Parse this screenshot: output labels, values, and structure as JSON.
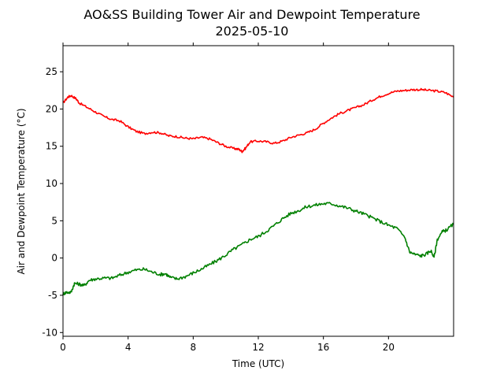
{
  "chart_data": {
    "type": "line",
    "title": "AO&SS Building Tower Air and Dewpoint Temperature",
    "subtitle": "2025-05-10",
    "xlabel": "Time (UTC)",
    "ylabel": "Air and Dewpoint Temperature (°C)",
    "xlim": [
      0,
      24
    ],
    "ylim": [
      -10.5,
      28.5
    ],
    "xticks": [
      0,
      4,
      8,
      12,
      16,
      20
    ],
    "yticks": [
      -10,
      -5,
      0,
      5,
      10,
      15,
      20,
      25
    ],
    "grid": false,
    "series": [
      {
        "color": "#ff0000",
        "x": [
          0,
          0.3,
          0.5,
          0.8,
          1,
          1.5,
          2,
          2.5,
          3,
          3.5,
          4,
          4.5,
          5,
          5.5,
          6,
          6.5,
          7,
          7.5,
          8,
          8.5,
          9,
          9.5,
          10,
          10.5,
          10.8,
          11,
          11.2,
          11.5,
          12,
          12.5,
          13,
          13.5,
          14,
          14.5,
          15,
          15.5,
          16,
          16.5,
          17,
          17.5,
          18,
          18.5,
          19,
          19.5,
          20,
          20.5,
          21,
          21.5,
          22,
          22.5,
          23,
          23.5,
          24
        ],
        "y": [
          20.8,
          21.6,
          21.8,
          21.4,
          20.8,
          20.2,
          19.6,
          19.0,
          18.6,
          18.4,
          17.6,
          17.0,
          16.7,
          16.9,
          16.8,
          16.4,
          16.3,
          16.1,
          16.0,
          16.2,
          16.0,
          15.5,
          15.0,
          14.7,
          14.6,
          14.3,
          14.7,
          15.6,
          15.7,
          15.6,
          15.4,
          15.7,
          16.2,
          16.5,
          16.8,
          17.3,
          18.1,
          18.8,
          19.4,
          19.8,
          20.2,
          20.6,
          21.2,
          21.7,
          22.1,
          22.4,
          22.5,
          22.6,
          22.6,
          22.5,
          22.4,
          22.2,
          21.6
        ]
      },
      {
        "color": "#008000",
        "x": [
          0,
          0.2,
          0.5,
          0.7,
          1,
          1.3,
          1.6,
          2,
          2.5,
          3,
          3.5,
          4,
          4.5,
          5,
          5.5,
          6,
          6.3,
          6.6,
          7,
          7.5,
          8,
          8.5,
          9,
          9.5,
          10,
          10.5,
          11,
          11.5,
          12,
          12.5,
          13,
          13.5,
          14,
          14.5,
          15,
          15.5,
          16,
          16.5,
          17,
          17.5,
          18,
          18.5,
          19,
          19.5,
          20,
          20.5,
          21,
          21.3,
          21.6,
          22,
          22.3,
          22.6,
          22.8,
          23,
          23.3,
          23.6,
          24
        ],
        "y": [
          -4.8,
          -4.6,
          -4.6,
          -3.4,
          -3.5,
          -3.7,
          -3.0,
          -2.8,
          -2.7,
          -2.7,
          -2.3,
          -1.9,
          -1.6,
          -1.5,
          -1.9,
          -2.2,
          -2.1,
          -2.6,
          -2.8,
          -2.5,
          -2.0,
          -1.5,
          -0.9,
          -0.3,
          0.4,
          1.2,
          1.8,
          2.5,
          2.9,
          3.6,
          4.4,
          5.3,
          6.0,
          6.4,
          6.9,
          7.1,
          7.3,
          7.3,
          7.0,
          6.7,
          6.3,
          5.9,
          5.4,
          4.9,
          4.4,
          4.0,
          2.8,
          0.8,
          0.5,
          0.3,
          0.5,
          1.0,
          0.1,
          2.5,
          3.5,
          3.8,
          4.6
        ]
      }
    ]
  }
}
